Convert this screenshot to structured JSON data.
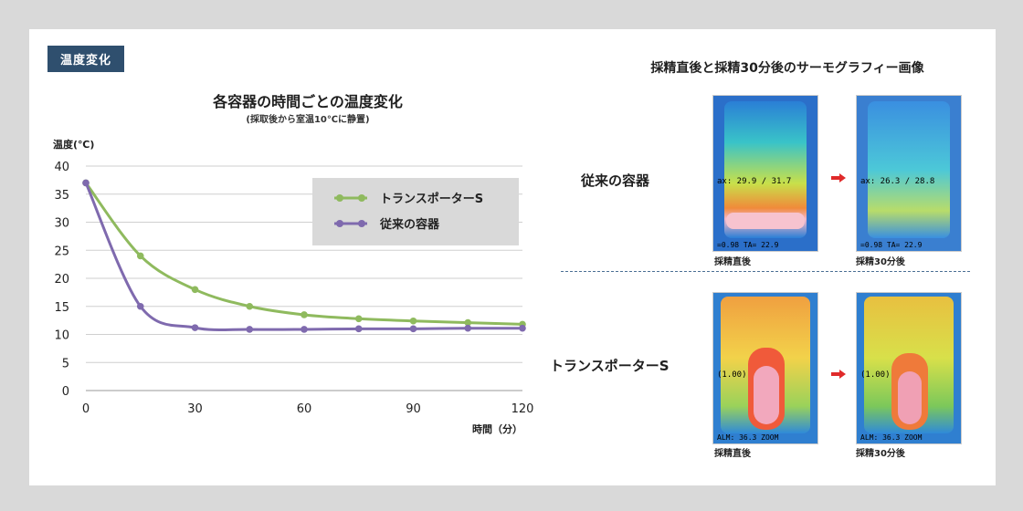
{
  "badge": "温度変化",
  "chart_data": {
    "type": "line",
    "title": "各容器の時間ごとの温度変化",
    "subtitle": "(採取後から室温10℃に静置)",
    "ylabel": "温度(℃)",
    "xlabel": "時間（分）",
    "x": [
      0,
      15,
      30,
      45,
      60,
      75,
      90,
      105,
      120
    ],
    "xticks": [
      0,
      30,
      60,
      90,
      120
    ],
    "yticks": [
      0,
      5,
      10,
      15,
      20,
      25,
      30,
      35,
      40
    ],
    "xlim": [
      0,
      120
    ],
    "ylim": [
      0,
      40
    ],
    "grid": true,
    "legend_position": "top-right",
    "series": [
      {
        "name": "トランスポーターS",
        "color": "#8fba5e",
        "values": [
          37,
          24,
          18,
          15,
          13.5,
          12.8,
          12.4,
          12.1,
          11.8
        ]
      },
      {
        "name": "従来の容器",
        "color": "#7f6aae",
        "values": [
          37,
          15,
          11.2,
          10.9,
          10.9,
          11,
          11,
          11.1,
          11.1
        ]
      }
    ]
  },
  "right": {
    "title": "採精直後と採精30分後のサーモグラフィー画像",
    "rows": [
      {
        "label": "従来の容器",
        "before_caption": "採精直後",
        "after_caption": "採精30分後",
        "before_overlay": "ax: 29.9 / 31.7",
        "before_footer": "=0.98  TA= 22.9",
        "after_overlay": "ax: 26.3 / 28.8",
        "after_footer": "=0.98  TA= 22.9"
      },
      {
        "label": "トランスポーターS",
        "before_caption": "採精直後",
        "after_caption": "採精30分後",
        "before_overlay": "(1.00)",
        "before_footer": "ALM: 36.3   ZOOM",
        "after_overlay": "(1.00)",
        "after_footer": "ALM: 36.3   ZOOM"
      }
    ],
    "arrow_color": "#e02a2a"
  }
}
